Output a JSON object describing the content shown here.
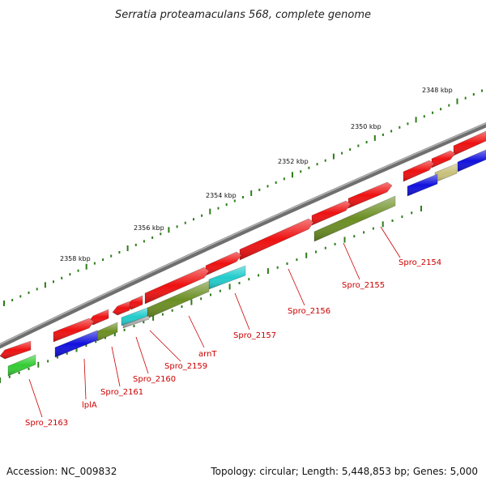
{
  "title": "Serratia proteamaculans 568, complete genome",
  "footer": {
    "accession": "Accession: NC_009832",
    "summary": "Topology: circular; Length: 5,448,853 bp; Genes: 5,000"
  },
  "colors": {
    "backbone": "#8a8a8a",
    "tick": "#2e7d1a",
    "label": "#cc0000",
    "red": "#ee1111",
    "blue": "#1111dd",
    "olive": "#6b8e23",
    "cyan": "#22cccc",
    "green": "#33cc33",
    "khaki": "#c8c07a",
    "grey": "#aaaaaa"
  },
  "scale_labels": [
    "2348 kbp",
    "2350 kbp",
    "2352 kbp",
    "2354 kbp",
    "2356 kbp",
    "2358 kbp"
  ],
  "gene_labels": [
    "Spro_2154",
    "Spro_2155",
    "Spro_2156",
    "Spro_2157",
    "arnT",
    "Spro_2159",
    "Spro_2160",
    "Spro_2161",
    "lplA",
    "Spro_2163"
  ]
}
